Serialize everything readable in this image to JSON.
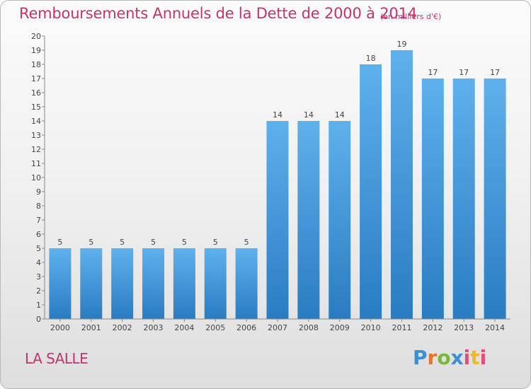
{
  "chart_data": {
    "type": "bar",
    "title": "Remboursements Annuels de la Dette de 2000 à 2014",
    "subtitle": "(en milliers d'€)",
    "categories": [
      "2000",
      "2001",
      "2002",
      "2003",
      "2004",
      "2005",
      "2006",
      "2007",
      "2008",
      "2009",
      "2010",
      "2011",
      "2012",
      "2013",
      "2014"
    ],
    "values": [
      5,
      5,
      5,
      5,
      5,
      5,
      5,
      14,
      14,
      14,
      18,
      19,
      17,
      17,
      17
    ],
    "ylim": [
      0,
      20
    ],
    "yticks": [
      0,
      1,
      2,
      3,
      4,
      5,
      6,
      7,
      8,
      9,
      10,
      11,
      12,
      13,
      14,
      15,
      16,
      17,
      18,
      19,
      20
    ],
    "grid": false,
    "bar_color_top": "#5eb1ec",
    "bar_color_bottom": "#2a7cc2"
  },
  "place_name": "LA SALLE",
  "brand": {
    "letters": [
      "P",
      "r",
      "o",
      "x",
      "i",
      "t",
      "i"
    ]
  }
}
